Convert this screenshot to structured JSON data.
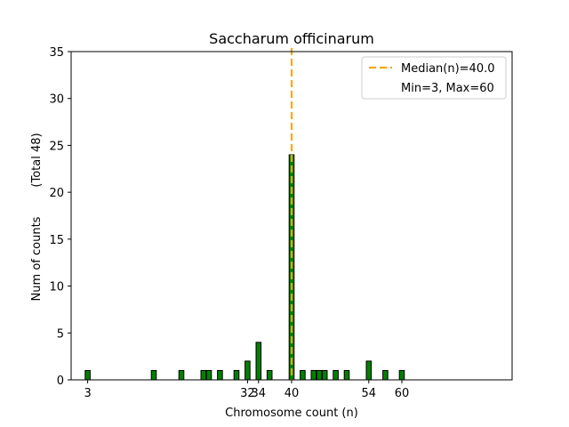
{
  "chart_data": {
    "type": "bar",
    "title": "Saccharum officinarum",
    "xlabel": "Chromosome count (n)",
    "ylabel": "Num of counts",
    "ylabel_extra": "(Total 48)",
    "xlim": [
      0,
      80
    ],
    "ylim": [
      0,
      35
    ],
    "xticks": [
      3,
      32,
      34,
      40,
      54,
      60
    ],
    "yticks": [
      0,
      5,
      10,
      15,
      20,
      25,
      30,
      35
    ],
    "bar_color": "#008000",
    "bar_edge_color": "#000000",
    "median_color": "#FFA500",
    "median": 40,
    "legend": {
      "position": "top-right",
      "median_label": "Median(n)=40.0",
      "range_label": "Min=3, Max=60"
    },
    "x": [
      3,
      15,
      20,
      24,
      25,
      27,
      30,
      32,
      34,
      36,
      40,
      42,
      44,
      45,
      46,
      48,
      50,
      54,
      57,
      60
    ],
    "values": [
      1,
      1,
      1,
      1,
      1,
      1,
      1,
      2,
      4,
      1,
      24,
      1,
      1,
      1,
      1,
      1,
      1,
      2,
      1,
      1
    ]
  }
}
